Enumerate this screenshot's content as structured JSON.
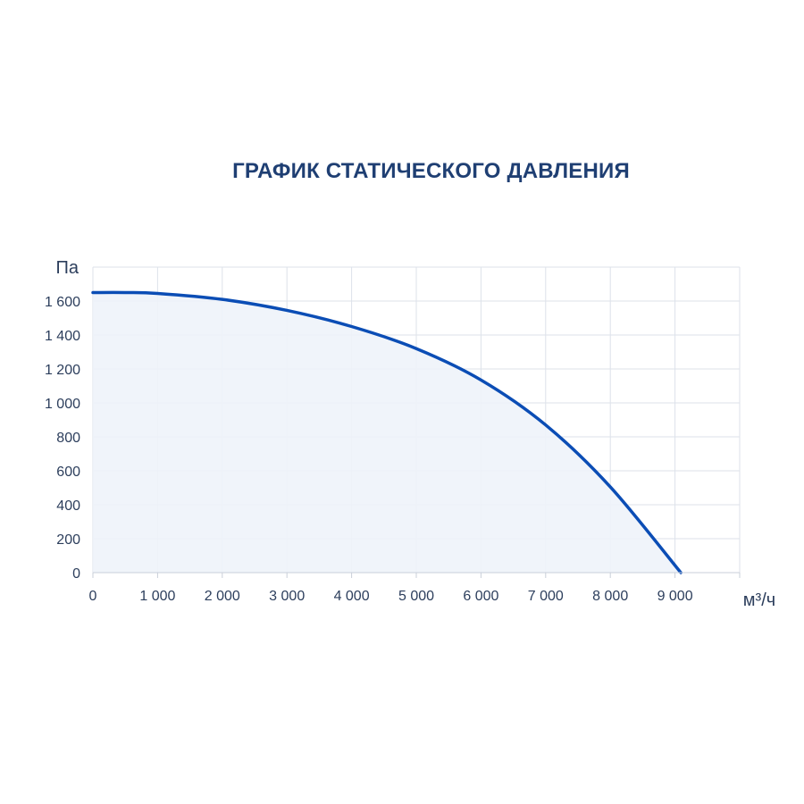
{
  "chart_data": {
    "type": "area",
    "title": "ГРАФИК СТАТИЧЕСКОГО ДАВЛЕНИЯ",
    "xlabel": "м³/ч",
    "ylabel": "Па",
    "xlim": [
      0,
      10000
    ],
    "ylim": [
      0,
      1800
    ],
    "grid": true,
    "x_ticks": [
      0,
      1000,
      2000,
      3000,
      4000,
      5000,
      6000,
      7000,
      8000,
      9000
    ],
    "x_tick_labels": [
      "0",
      "1 000",
      "2 000",
      "3 000",
      "4 000",
      "5 000",
      "6 000",
      "7 000",
      "8 000",
      "9 000"
    ],
    "y_ticks": [
      0,
      200,
      400,
      600,
      800,
      1000,
      1200,
      1400,
      1600
    ],
    "y_tick_labels": [
      "0",
      "200",
      "400",
      "600",
      "800",
      "1 000",
      "1 200",
      "1 400",
      "1 600"
    ],
    "series": [
      {
        "x": [
          0,
          500,
          1000,
          2000,
          3000,
          4000,
          5000,
          6000,
          7000,
          8000,
          9090
        ],
        "y": [
          1650,
          1650,
          1645,
          1610,
          1545,
          1450,
          1320,
          1135,
          870,
          505,
          0
        ]
      }
    ],
    "colors": {
      "line": "#0b4db5",
      "fill": "#eef3fa",
      "grid": "#dde2ea",
      "text": "#2c3e5c",
      "title": "#1f3f73"
    }
  }
}
